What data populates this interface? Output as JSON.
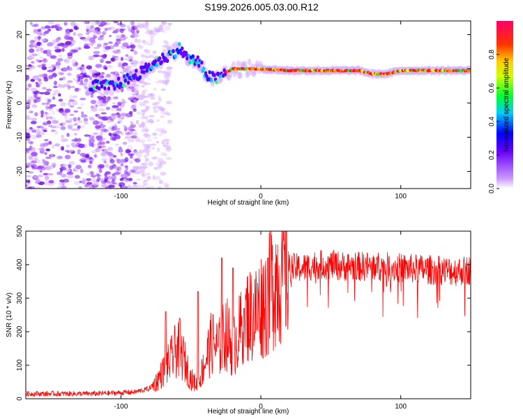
{
  "title": "S199.2026.005.03.00.R12",
  "chart_data": [
    {
      "type": "heatmap",
      "name": "spectrogram",
      "xlabel": "Height of straight line (km)",
      "ylabel": "Frequency (Hz)",
      "xlim": [
        -168,
        150
      ],
      "ylim": [
        -25,
        24
      ],
      "xticks": [
        -100,
        0,
        100
      ],
      "yticks": [
        -20,
        -10,
        0,
        10,
        20
      ],
      "grid": false,
      "ridge": {
        "description": "dominant spectral ridge (frequency vs height)",
        "x": [
          -120,
          -105,
          -95,
          -85,
          -75,
          -65,
          -58,
          -52,
          -45,
          -38,
          -32,
          -25,
          -20,
          -10,
          0,
          20,
          50,
          70,
          80,
          90,
          100,
          110,
          130,
          150
        ],
        "y": [
          5,
          5,
          7,
          9,
          12,
          14,
          16,
          13,
          12,
          8,
          7,
          9,
          10,
          10,
          10,
          9.5,
          9.5,
          9.5,
          8.5,
          8.5,
          9.5,
          9.5,
          9.5,
          9.5
        ]
      },
      "colorbar": {
        "label": "Normalized spectral amplitude",
        "range": [
          0,
          1
        ],
        "ticks": [
          0.0,
          0.2,
          0.4,
          0.6,
          0.8
        ],
        "tick_labels": [
          "0.0",
          "0.2",
          "0.4",
          "0.6",
          "0.8"
        ],
        "colors": [
          "#ffffff",
          "#9933ff",
          "#0000ff",
          "#00ccff",
          "#00ff00",
          "#ffff00",
          "#ff8800",
          "#ff0000",
          "#ff0066"
        ]
      }
    },
    {
      "type": "line",
      "name": "snr",
      "xlabel": "Height of straight line (km)",
      "ylabel": "SNR (10 * v/v)",
      "xlim": [
        -168,
        150
      ],
      "ylim": [
        0,
        500
      ],
      "xticks": [
        -100,
        0,
        100
      ],
      "yticks": [
        0,
        100,
        200,
        300,
        400,
        500
      ],
      "grid": false,
      "color": "#ff0000",
      "series": [
        {
          "name": "SNR",
          "envelope_x": [
            -168,
            -140,
            -120,
            -100,
            -90,
            -80,
            -75,
            -70,
            -65,
            -60,
            -55,
            -50,
            -45,
            -40,
            -35,
            -30,
            -25,
            -20,
            -15,
            -10,
            -5,
            0,
            5,
            10,
            15,
            20,
            30,
            40,
            50,
            60,
            80,
            100,
            120,
            140,
            150
          ],
          "envelope_y": [
            15,
            15,
            15,
            18,
            20,
            30,
            50,
            80,
            110,
            150,
            120,
            60,
            40,
            110,
            170,
            150,
            200,
            150,
            200,
            250,
            250,
            280,
            300,
            360,
            380,
            390,
            390,
            400,
            400,
            395,
            395,
            390,
            385,
            380,
            385
          ],
          "peaks_x": [
            -68,
            -58,
            -45,
            -28,
            -20,
            -12,
            5,
            7
          ],
          "peaks_y": [
            260,
            240,
            320,
            420,
            390,
            270,
            420,
            500
          ]
        }
      ]
    }
  ]
}
